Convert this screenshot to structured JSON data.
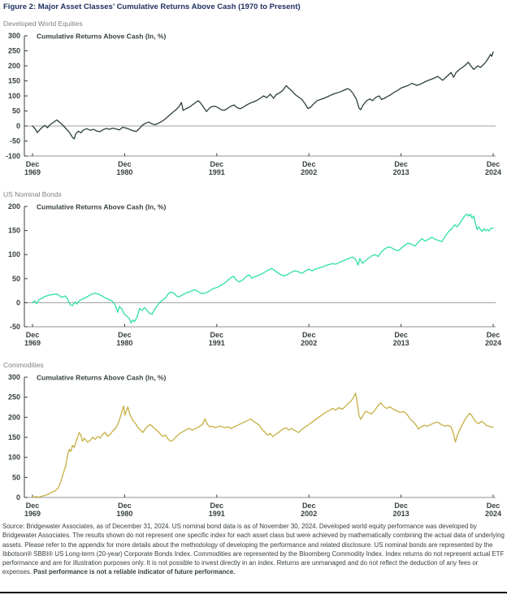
{
  "title": "Figure 2: Major Asset Classes’ Cumulative Returns Above Cash (1970 to Present)",
  "footer": {
    "source_text": "Source: Bridgewater Associates, as of December 31, 2024. US nominal bond data is as of November 30, 2024. Developed world equity performance was developed by Bridgewater Associates. The results shown do not represent one specific index for each asset class but were achieved by mathematically combining the actual data of underlying assets. Please refer to the appendix for more details about the methodology of developing the performance and related disclosure. US nominal bonds are represented by the Ibbotson® SBBI® US Long-term (20-year) Corporate Bonds Index. Commodities are represented by the Bloomberg Commodity Index. Index returns do not represent actual ETF performance and are for illustration purposes only. It is not possible to invest directly in an index. Returns are unmanaged and do not reflect the deduction of any fees or expenses. ",
    "disclaimer_bold": "Past performance is not a reliable indicator of future performance."
  },
  "colors": {
    "title_navy": "#1c2e5e",
    "subtitle_gray": "#7b837f",
    "text_dark": "#36413b",
    "zero_line": "#9ca19c",
    "axis_light": "#8d928d",
    "equities_line": "#2c4137",
    "bonds_line": "#2ee0a5",
    "commodities_line": "#c5af43",
    "bottom_rule": "#0a0a0a"
  },
  "chart_data": [
    {
      "type": "line",
      "name": "developed-world-equities",
      "title": "Developed World Equities",
      "inner_label": "Cumulative Returns Above Cash (ln, %)",
      "color": "#2c4137",
      "ylim": [
        -100,
        300
      ],
      "yticks": [
        300,
        250,
        200,
        150,
        100,
        50,
        0,
        -50,
        -100
      ],
      "xlim": [
        1969.92,
        2024.92
      ],
      "xticks": [
        {
          "year": 1969.92,
          "line1": "Dec",
          "line2": "1969"
        },
        {
          "year": 1980.92,
          "line1": "Dec",
          "line2": "1980"
        },
        {
          "year": 1991.92,
          "line1": "Dec",
          "line2": "1991"
        },
        {
          "year": 2002.92,
          "line1": "Dec",
          "line2": "2002"
        },
        {
          "year": 2013.92,
          "line1": "Dec",
          "line2": "2013"
        },
        {
          "year": 2024.92,
          "line1": "Dec",
          "line2": "2024"
        }
      ],
      "grid": false,
      "legend": "none",
      "x": [
        1969.92,
        1970.2,
        1970.5,
        1970.8,
        1971.1,
        1971.4,
        1971.7,
        1972.0,
        1972.4,
        1972.8,
        1973.1,
        1973.5,
        1973.9,
        1974.3,
        1974.7,
        1974.9,
        1975.1,
        1975.4,
        1975.7,
        1976.0,
        1976.4,
        1976.8,
        1977.2,
        1977.6,
        1978.0,
        1978.3,
        1978.7,
        1979.1,
        1979.5,
        1979.9,
        1980.3,
        1980.7,
        1981.1,
        1981.5,
        1981.9,
        1982.3,
        1982.7,
        1983.0,
        1983.4,
        1983.8,
        1984.2,
        1984.6,
        1985.0,
        1985.4,
        1985.8,
        1986.2,
        1986.6,
        1987.0,
        1987.4,
        1987.7,
        1987.9,
        1988.2,
        1988.6,
        1989.0,
        1989.4,
        1989.7,
        1990.0,
        1990.4,
        1990.7,
        1991.0,
        1991.3,
        1991.7,
        1992.0,
        1992.4,
        1992.8,
        1993.2,
        1993.6,
        1994.0,
        1994.3,
        1994.7,
        1995.1,
        1995.5,
        1995.9,
        1996.3,
        1996.7,
        1997.1,
        1997.5,
        1997.9,
        1998.3,
        1998.7,
        1999.0,
        1999.4,
        1999.8,
        2000.2,
        2000.5,
        2000.9,
        2001.3,
        2001.7,
        2002.1,
        2002.5,
        2002.8,
        2003.1,
        2003.5,
        2003.9,
        2004.3,
        2004.7,
        2005.1,
        2005.5,
        2005.9,
        2006.3,
        2006.7,
        2007.1,
        2007.5,
        2007.8,
        2008.2,
        2008.6,
        2008.9,
        2009.1,
        2009.4,
        2009.8,
        2010.2,
        2010.5,
        2010.9,
        2011.3,
        2011.6,
        2011.9,
        2012.3,
        2012.7,
        2013.1,
        2013.5,
        2013.9,
        2014.3,
        2014.8,
        2015.2,
        2015.8,
        2016.3,
        2017.0,
        2017.8,
        2018.3,
        2018.9,
        2019.4,
        2019.9,
        2020.2,
        2020.5,
        2020.9,
        2021.3,
        2021.7,
        2021.95,
        2022.3,
        2022.6,
        2022.8,
        2023.1,
        2023.4,
        2023.8,
        2024.1,
        2024.4,
        2024.6,
        2024.75,
        2024.92
      ],
      "y": [
        0,
        -8,
        -22,
        -12,
        -4,
        2,
        -6,
        4,
        12,
        20,
        14,
        4,
        -8,
        -20,
        -38,
        -43,
        -25,
        -17,
        -23,
        -13,
        -9,
        -14,
        -11,
        -17,
        -19,
        -13,
        -8,
        -11,
        -7,
        -10,
        -13,
        -4,
        -7,
        -11,
        -16,
        -18,
        -8,
        2,
        9,
        13,
        7,
        4,
        10,
        16,
        24,
        34,
        44,
        53,
        64,
        78,
        52,
        57,
        62,
        70,
        78,
        84,
        76,
        60,
        48,
        58,
        64,
        66,
        62,
        55,
        52,
        58,
        66,
        70,
        62,
        57,
        63,
        70,
        76,
        80,
        85,
        92,
        100,
        94,
        106,
        92,
        104,
        110,
        118,
        134,
        126,
        116,
        104,
        96,
        88,
        72,
        58,
        62,
        74,
        84,
        88,
        92,
        97,
        102,
        107,
        110,
        114,
        119,
        124,
        121,
        108,
        88,
        60,
        54,
        70,
        84,
        90,
        84,
        95,
        100,
        88,
        92,
        98,
        104,
        112,
        118,
        126,
        130,
        135,
        142,
        135,
        140,
        150,
        158,
        165,
        152,
        165,
        178,
        162,
        178,
        188,
        196,
        205,
        212,
        198,
        188,
        193,
        200,
        195,
        205,
        215,
        228,
        238,
        232,
        246
      ]
    },
    {
      "type": "line",
      "name": "us-nominal-bonds",
      "title": "US Nominal Bonds",
      "inner_label": "Cumulative Returns Above Cash (ln, %)",
      "color": "#2ee0a5",
      "ylim": [
        -50,
        200
      ],
      "yticks": [
        200,
        150,
        100,
        50,
        0,
        -50
      ],
      "xlim": [
        1969.92,
        2024.92
      ],
      "xticks": [
        {
          "year": 1969.92,
          "line1": "Dec",
          "line2": "1969"
        },
        {
          "year": 1980.92,
          "line1": "Dec",
          "line2": "1980"
        },
        {
          "year": 1991.92,
          "line1": "Dec",
          "line2": "1991"
        },
        {
          "year": 2002.92,
          "line1": "Dec",
          "line2": "2002"
        },
        {
          "year": 2013.92,
          "line1": "Dec",
          "line2": "2013"
        },
        {
          "year": 2024.92,
          "line1": "Dec",
          "line2": "2024"
        }
      ],
      "grid": false,
      "legend": "none",
      "x": [
        1969.92,
        1970.2,
        1970.4,
        1970.7,
        1971.0,
        1971.3,
        1971.6,
        1972.0,
        1972.4,
        1972.8,
        1973.1,
        1973.4,
        1973.8,
        1974.1,
        1974.4,
        1974.7,
        1975.0,
        1975.2,
        1975.5,
        1975.8,
        1976.2,
        1976.6,
        1977.0,
        1977.4,
        1977.8,
        1978.2,
        1978.6,
        1979.0,
        1979.4,
        1979.7,
        1979.9,
        1980.1,
        1980.3,
        1980.6,
        1980.9,
        1981.2,
        1981.5,
        1981.7,
        1981.9,
        1982.1,
        1982.4,
        1982.7,
        1983.0,
        1983.3,
        1983.6,
        1983.9,
        1984.2,
        1984.5,
        1984.8,
        1985.1,
        1985.4,
        1985.8,
        1986.1,
        1986.4,
        1986.8,
        1987.1,
        1987.4,
        1987.8,
        1988.1,
        1988.5,
        1988.9,
        1989.2,
        1989.6,
        1990.0,
        1990.4,
        1990.8,
        1991.2,
        1991.6,
        1992.0,
        1992.4,
        1992.8,
        1993.2,
        1993.6,
        1993.9,
        1994.2,
        1994.6,
        1995.0,
        1995.4,
        1995.8,
        1996.1,
        1996.5,
        1996.9,
        1997.3,
        1997.7,
        1998.1,
        1998.5,
        1998.9,
        1999.3,
        1999.7,
        2000.1,
        2000.5,
        2000.9,
        2001.3,
        2001.7,
        2002.1,
        2002.5,
        2002.9,
        2003.3,
        2003.7,
        2004.1,
        2004.5,
        2004.9,
        2005.3,
        2005.7,
        2006.1,
        2006.5,
        2006.9,
        2007.3,
        2007.7,
        2008.1,
        2008.5,
        2008.8,
        2009.0,
        2009.3,
        2009.6,
        2010.0,
        2010.4,
        2010.8,
        2011.2,
        2011.6,
        2012.0,
        2012.4,
        2012.8,
        2013.2,
        2013.6,
        2014.0,
        2014.4,
        2014.8,
        2015.2,
        2015.6,
        2016.0,
        2016.4,
        2016.8,
        2017.2,
        2017.6,
        2018.0,
        2018.4,
        2018.8,
        2019.2,
        2019.6,
        2020.0,
        2020.3,
        2020.6,
        2020.9,
        2021.2,
        2021.5,
        2021.8,
        2022.0,
        2022.2,
        2022.4,
        2022.6,
        2022.8,
        2023.0,
        2023.2,
        2023.4,
        2023.6,
        2023.8,
        2024.0,
        2024.2,
        2024.4,
        2024.6,
        2024.92
      ],
      "y": [
        0,
        4,
        -2,
        6,
        9,
        12,
        14,
        16,
        17,
        18,
        15,
        11,
        14,
        8,
        -4,
        -6,
        2,
        -3,
        4,
        7,
        10,
        14,
        18,
        20,
        18,
        14,
        10,
        7,
        4,
        -2,
        -10,
        -20,
        -8,
        -14,
        -24,
        -28,
        -34,
        -42,
        -36,
        -39,
        -30,
        -12,
        -16,
        -10,
        -16,
        -22,
        -24,
        -14,
        -6,
        0,
        5,
        10,
        18,
        22,
        20,
        14,
        12,
        16,
        19,
        22,
        24,
        27,
        24,
        20,
        19,
        22,
        26,
        30,
        32,
        36,
        40,
        46,
        52,
        55,
        48,
        43,
        47,
        54,
        58,
        51,
        54,
        57,
        60,
        64,
        68,
        71,
        66,
        61,
        57,
        56,
        60,
        64,
        66,
        64,
        61,
        66,
        70,
        66,
        70,
        72,
        74,
        77,
        79,
        81,
        80,
        83,
        86,
        89,
        92,
        95,
        90,
        78,
        92,
        82,
        86,
        92,
        97,
        100,
        96,
        106,
        112,
        116,
        114,
        110,
        108,
        114,
        120,
        124,
        121,
        118,
        126,
        133,
        128,
        132,
        136,
        132,
        129,
        127,
        138,
        148,
        154,
        162,
        158,
        164,
        172,
        180,
        184,
        180,
        184,
        176,
        180,
        165,
        152,
        158,
        152,
        148,
        154,
        150,
        152,
        149,
        154,
        155
      ]
    },
    {
      "type": "line",
      "name": "commodities",
      "title": "Commodities",
      "inner_label": "Cumulative Returns Above Cash (ln, %)",
      "color": "#c5af43",
      "ylim": [
        0,
        300
      ],
      "yticks": [
        300,
        250,
        200,
        150,
        100,
        50,
        0
      ],
      "xlim": [
        1969.92,
        2024.92
      ],
      "xticks": [
        {
          "year": 1969.92,
          "line1": "Dec",
          "line2": "1969"
        },
        {
          "year": 1980.92,
          "line1": "Dec",
          "line2": "1980"
        },
        {
          "year": 1991.92,
          "line1": "Dec",
          "line2": "1991"
        },
        {
          "year": 2002.92,
          "line1": "Dec",
          "line2": "2002"
        },
        {
          "year": 2013.92,
          "line1": "Dec",
          "line2": "2013"
        },
        {
          "year": 2024.92,
          "line1": "Dec",
          "line2": "2024"
        }
      ],
      "grid": false,
      "legend": "none",
      "x": [
        1969.92,
        1970.3,
        1970.7,
        1971.0,
        1971.4,
        1971.8,
        1972.2,
        1972.6,
        1973.0,
        1973.3,
        1973.6,
        1973.9,
        1974.1,
        1974.3,
        1974.5,
        1974.7,
        1974.9,
        1975.1,
        1975.3,
        1975.5,
        1975.7,
        1975.9,
        1976.1,
        1976.3,
        1976.5,
        1976.8,
        1977.1,
        1977.4,
        1977.7,
        1978.0,
        1978.3,
        1978.6,
        1978.9,
        1979.2,
        1979.5,
        1979.8,
        1980.0,
        1980.2,
        1980.4,
        1980.6,
        1980.8,
        1980.95,
        1981.1,
        1981.3,
        1981.5,
        1981.7,
        1981.9,
        1982.2,
        1982.5,
        1982.8,
        1983.1,
        1983.4,
        1983.7,
        1984.0,
        1984.3,
        1984.6,
        1984.9,
        1985.2,
        1985.5,
        1985.8,
        1986.1,
        1986.4,
        1986.7,
        1987.0,
        1987.4,
        1987.8,
        1988.2,
        1988.6,
        1989.0,
        1989.4,
        1989.8,
        1990.2,
        1990.5,
        1990.8,
        1991.1,
        1991.4,
        1991.7,
        1992.0,
        1992.4,
        1992.8,
        1993.2,
        1993.6,
        1994.0,
        1994.4,
        1994.8,
        1995.2,
        1995.6,
        1996.0,
        1996.3,
        1996.6,
        1997.0,
        1997.3,
        1997.6,
        1998.0,
        1998.3,
        1998.6,
        1999.0,
        1999.4,
        1999.8,
        2000.2,
        2000.5,
        2000.9,
        2001.3,
        2001.7,
        2002.1,
        2002.5,
        2002.9,
        2003.3,
        2003.7,
        2004.1,
        2004.5,
        2004.9,
        2005.3,
        2005.7,
        2006.1,
        2006.5,
        2006.9,
        2007.3,
        2007.7,
        2008.0,
        2008.3,
        2008.5,
        2008.7,
        2008.9,
        2009.1,
        2009.4,
        2009.7,
        2010.0,
        2010.4,
        2010.8,
        2011.2,
        2011.5,
        2011.8,
        2012.2,
        2012.6,
        2013.0,
        2013.4,
        2013.8,
        2014.2,
        2014.6,
        2015.0,
        2015.4,
        2015.8,
        2016.0,
        2016.3,
        2016.7,
        2017.1,
        2017.5,
        2017.9,
        2018.3,
        2018.7,
        2019.1,
        2019.5,
        2019.9,
        2020.2,
        2020.4,
        2020.7,
        2021.0,
        2021.3,
        2021.6,
        2021.9,
        2022.1,
        2022.3,
        2022.6,
        2022.9,
        2023.2,
        2023.5,
        2023.8,
        2024.1,
        2024.4,
        2024.7,
        2024.92
      ],
      "y": [
        0,
        2,
        1,
        3,
        5,
        8,
        13,
        16,
        24,
        40,
        60,
        80,
        105,
        120,
        115,
        130,
        125,
        138,
        150,
        162,
        155,
        140,
        148,
        143,
        138,
        142,
        150,
        145,
        152,
        148,
        158,
        162,
        152,
        158,
        166,
        172,
        178,
        188,
        200,
        215,
        228,
        205,
        215,
        226,
        210,
        200,
        192,
        185,
        175,
        168,
        162,
        172,
        178,
        182,
        176,
        170,
        165,
        158,
        152,
        156,
        146,
        140,
        143,
        150,
        158,
        163,
        168,
        172,
        168,
        172,
        176,
        182,
        196,
        182,
        176,
        178,
        174,
        176,
        178,
        174,
        176,
        172,
        176,
        180,
        184,
        188,
        192,
        196,
        190,
        186,
        180,
        170,
        164,
        155,
        160,
        152,
        158,
        164,
        170,
        174,
        168,
        172,
        166,
        162,
        170,
        176,
        182,
        188,
        194,
        200,
        206,
        212,
        216,
        222,
        218,
        224,
        220,
        228,
        236,
        242,
        252,
        260,
        235,
        205,
        195,
        205,
        215,
        212,
        208,
        218,
        230,
        236,
        228,
        222,
        226,
        220,
        216,
        212,
        214,
        208,
        196,
        188,
        178,
        170,
        176,
        180,
        178,
        182,
        186,
        188,
        182,
        178,
        180,
        176,
        158,
        138,
        158,
        172,
        184,
        196,
        204,
        210,
        206,
        196,
        188,
        184,
        190,
        186,
        180,
        178,
        176,
        175
      ]
    }
  ]
}
